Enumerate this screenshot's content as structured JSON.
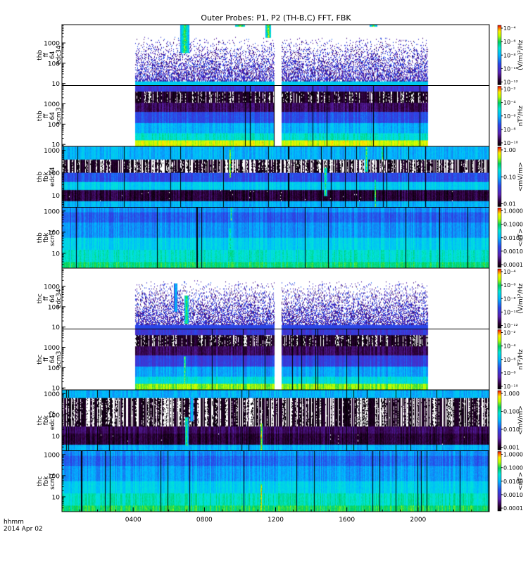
{
  "title": "Outer Probes: P1, P2 (TH-B,C) FFT, FBK",
  "footer": {
    "line1": "hhmm",
    "line2": "2014 Apr 02"
  },
  "colors": {
    "background": "#ffffff",
    "empty_rgb": [
      255,
      255,
      255
    ],
    "gap_column_rgb": [
      0,
      0,
      0
    ],
    "colormap_stops": [
      [
        0.0,
        "#000000"
      ],
      [
        0.08,
        "#2b0034"
      ],
      [
        0.2,
        "#5a1fb0"
      ],
      [
        0.35,
        "#2a46e8"
      ],
      [
        0.5,
        "#00b8ff"
      ],
      [
        0.62,
        "#00e6d6"
      ],
      [
        0.72,
        "#00d060"
      ],
      [
        0.82,
        "#b8ff00"
      ],
      [
        0.9,
        "#ffee00"
      ],
      [
        0.96,
        "#ff6600"
      ],
      [
        1.0,
        "#e80000"
      ]
    ]
  },
  "chart_data": {
    "type": "heatmap",
    "title": "Outer Probes: P1, P2 (TH-B,C) FFT, FBK",
    "x_axis": {
      "label": "hhmm",
      "date": "2014 Apr 02",
      "ticks": [
        "0400",
        "0800",
        "1200",
        "1600",
        "2000"
      ],
      "tick_values_hours": [
        4,
        8,
        12,
        16,
        20
      ],
      "range_hours": [
        0,
        24
      ]
    },
    "panels": [
      {
        "id": "thb-fft-edc34",
        "ylabel": [
          "thb",
          "ff",
          "64",
          "edc34"
        ],
        "yscale": "log",
        "yrange": [
          8,
          8000
        ],
        "yticks": [
          "10",
          "100",
          "1000"
        ],
        "ytick_values": [
          10,
          100,
          1000
        ],
        "colorbar_ticks": [
          "10⁻⁴",
          "10⁻⁶",
          "10⁻⁸",
          "10⁻¹⁰",
          "10⁻¹²"
        ],
        "colorbar_label": "(V/m)²/Hz",
        "data_intervals_hours": [
          [
            4.1,
            11.95
          ],
          [
            12.35,
            20.55
          ]
        ],
        "mode": "sparse",
        "base_level": 0.55,
        "features": [
          [
            6.9,
            0.55,
            4.0,
            0.82
          ],
          [
            10.0,
            1.0,
            4.5,
            0.9
          ],
          [
            11.6,
            0.8,
            2.5,
            0.9
          ],
          [
            13.5,
            1.6,
            3.0,
            0.9
          ],
          [
            16.3,
            1.4,
            2.5,
            0.75
          ],
          [
            17.5,
            1.0,
            3.5,
            0.8
          ]
        ]
      },
      {
        "id": "thb-fft-scm3",
        "ylabel": [
          "thb",
          "ff",
          "64",
          "scm3"
        ],
        "yscale": "log",
        "yrange": [
          8,
          8000
        ],
        "yticks": [
          "10",
          "100",
          "1000"
        ],
        "ytick_values": [
          10,
          100,
          1000
        ],
        "colorbar_ticks": [
          "10⁻²",
          "10⁻⁴",
          "10⁻⁶",
          "10⁻⁸",
          "10⁻¹⁰"
        ],
        "colorbar_label": "nT²/Hz",
        "data_intervals_hours": [
          [
            4.1,
            11.95
          ],
          [
            12.35,
            20.55
          ]
        ],
        "mode": "layered",
        "layers": [
          [
            0.0,
            0.1,
            0.85
          ],
          [
            0.1,
            0.22,
            0.62
          ],
          [
            0.22,
            0.38,
            0.5
          ],
          [
            0.38,
            0.56,
            0.35
          ],
          [
            0.56,
            0.72,
            0.12
          ],
          [
            0.72,
            0.9,
            0.04
          ]
        ],
        "features": []
      },
      {
        "id": "thb-fbk-edc34",
        "ylabel": [
          "thb",
          "fbk",
          "edc34"
        ],
        "yscale": "log",
        "yrange": [
          3,
          1500
        ],
        "yticks": [
          "10",
          "100",
          "1000"
        ],
        "ytick_values": [
          10,
          100,
          1000
        ],
        "colorbar_ticks": [
          "1.00",
          "0.10",
          "0.01"
        ],
        "colorbar_label": "<mV/m>",
        "data_intervals_hours": [
          [
            0,
            24
          ]
        ],
        "mode": "layered",
        "layers": [
          [
            0.0,
            0.1,
            0.5
          ],
          [
            0.1,
            0.28,
            0.08
          ],
          [
            0.28,
            0.42,
            0.55
          ],
          [
            0.42,
            0.56,
            0.35
          ],
          [
            0.56,
            0.78,
            0.02
          ],
          [
            0.78,
            0.9,
            0.5
          ],
          [
            0.9,
            1.0,
            0.5
          ]
        ],
        "features": [
          [
            9.45,
            0.5,
            0.9,
            0.95
          ],
          [
            9.6,
            0.8,
            0.6,
            0.75
          ],
          [
            17.1,
            0.6,
            1.5,
            0.82
          ],
          [
            18.0,
            0.8,
            1.2,
            0.82
          ],
          [
            17.6,
            0.0,
            0.6,
            0.95
          ],
          [
            14.8,
            0.2,
            1.5,
            0.8
          ]
        ]
      },
      {
        "id": "thb-fbk-scm1",
        "ylabel": [
          "thb",
          "fbk",
          "scm1"
        ],
        "yscale": "log",
        "yrange": [
          2,
          1500
        ],
        "yticks": [
          "10",
          "100",
          "1000"
        ],
        "ytick_values": [
          10,
          100,
          1000
        ],
        "colorbar_ticks": [
          "1.0000",
          "0.1000",
          "0.0100",
          "0.0010",
          "0.0001"
        ],
        "colorbar_label": "<nT>",
        "data_intervals_hours": [
          [
            0,
            24
          ]
        ],
        "mode": "layered",
        "layers": [
          [
            0.0,
            0.1,
            0.7
          ],
          [
            0.1,
            0.3,
            0.62
          ],
          [
            0.3,
            0.5,
            0.56
          ],
          [
            0.5,
            0.75,
            0.45
          ],
          [
            0.75,
            0.92,
            0.38
          ],
          [
            0.92,
            1.0,
            0.45
          ]
        ],
        "features": [
          [
            9.45,
            0.2,
            0.4,
            0.98
          ],
          [
            9.5,
            0.8,
            0.5,
            0.9
          ]
        ]
      },
      {
        "id": "thc-fft-edc34",
        "ylabel": [
          "thc",
          "ff",
          "64",
          "edc34"
        ],
        "yscale": "log",
        "yrange": [
          8,
          8000
        ],
        "yticks": [
          "10",
          "100",
          "1000"
        ],
        "ytick_values": [
          10,
          100,
          1000
        ],
        "colorbar_ticks": [
          "10⁻⁴",
          "10⁻⁶",
          "10⁻⁸",
          "10⁻¹⁰",
          "10⁻¹²"
        ],
        "colorbar_label": "(V/m)²/Hz",
        "data_intervals_hours": [
          [
            4.1,
            11.95
          ],
          [
            12.35,
            20.55
          ]
        ],
        "mode": "sparse",
        "base_level": 0.35,
        "features": [
          [
            7.0,
            0.1,
            2.0,
            0.82
          ],
          [
            6.4,
            0.3,
            1.5,
            0.6
          ]
        ]
      },
      {
        "id": "thc-fft-scm3",
        "ylabel": [
          "thc",
          "ff",
          "64",
          "scm3"
        ],
        "yscale": "log",
        "yrange": [
          8,
          8000
        ],
        "yticks": [
          "10",
          "100",
          "1000"
        ],
        "ytick_values": [
          10,
          100,
          1000
        ],
        "colorbar_ticks": [
          "10⁻²",
          "10⁻⁴",
          "10⁻⁶",
          "10⁻⁸",
          "10⁻¹⁰"
        ],
        "colorbar_label": "nT²/Hz",
        "data_intervals_hours": [
          [
            4.1,
            11.95
          ],
          [
            12.35,
            20.55
          ]
        ],
        "mode": "layered",
        "layers": [
          [
            0.0,
            0.1,
            0.8
          ],
          [
            0.1,
            0.22,
            0.6
          ],
          [
            0.22,
            0.38,
            0.48
          ],
          [
            0.38,
            0.56,
            0.32
          ],
          [
            0.56,
            0.72,
            0.12
          ],
          [
            0.72,
            0.9,
            0.04
          ]
        ],
        "features": [
          [
            6.9,
            0.1,
            1.0,
            0.85
          ]
        ]
      },
      {
        "id": "thc-fbk-edc12",
        "ylabel": [
          "thc",
          "fbk",
          "edc12"
        ],
        "yscale": "log",
        "yrange": [
          2,
          1500
        ],
        "yticks": [
          "10",
          "100",
          "1000"
        ],
        "ytick_values": [
          10,
          100,
          1000
        ],
        "colorbar_ticks": [
          "1.000",
          "0.100",
          "0.010",
          "0.001"
        ],
        "colorbar_label": "<mV/m>",
        "data_intervals_hours": [
          [
            0,
            24
          ]
        ],
        "mode": "layered",
        "layers": [
          [
            0.0,
            0.1,
            0.5
          ],
          [
            0.1,
            0.28,
            0.08
          ],
          [
            0.28,
            0.4,
            0.12
          ],
          [
            0.4,
            0.88,
            0.02
          ],
          [
            0.88,
            1.0,
            0.5
          ]
        ],
        "features": [
          [
            7.0,
            0.1,
            1.6,
            0.82
          ],
          [
            7.3,
            0.5,
            1.4,
            0.65
          ],
          [
            11.2,
            0.0,
            1.0,
            0.97
          ]
        ]
      },
      {
        "id": "thc-fbk-scm1",
        "ylabel": [
          "thc",
          "fbk",
          "scm1"
        ],
        "yscale": "log",
        "yrange": [
          2,
          1500
        ],
        "yticks": [
          "10",
          "100",
          "1000"
        ],
        "ytick_values": [
          10,
          100,
          1000
        ],
        "colorbar_ticks": [
          "1.0000",
          "0.1000",
          "0.0100",
          "0.0010",
          "0.0001"
        ],
        "colorbar_label": "<nT>",
        "data_intervals_hours": [
          [
            0,
            24
          ]
        ],
        "mode": "layered",
        "layers": [
          [
            0.0,
            0.1,
            0.72
          ],
          [
            0.1,
            0.3,
            0.64
          ],
          [
            0.3,
            0.5,
            0.56
          ],
          [
            0.5,
            0.75,
            0.47
          ],
          [
            0.75,
            0.92,
            0.4
          ],
          [
            0.92,
            1.0,
            0.45
          ]
        ],
        "features": [
          [
            11.2,
            0.0,
            1.0,
            0.97
          ]
        ]
      }
    ]
  }
}
